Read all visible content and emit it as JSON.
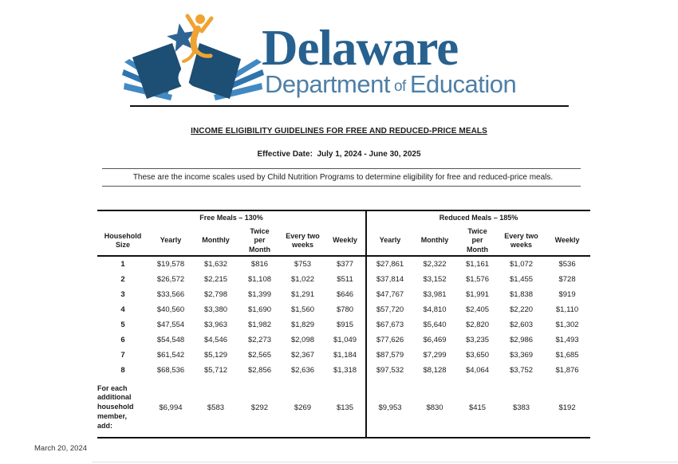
{
  "colors": {
    "delaware_blue": "#27618f",
    "dept_blue": "#4d7fa7",
    "book_navy": "#1d4e73",
    "page_blue": "#4289c2",
    "figure_orange": "#efa333"
  },
  "logo": {
    "title": "Delaware",
    "subtitle": [
      "Department",
      "of",
      "Education"
    ]
  },
  "header": {
    "title": "INCOME ELIGIBILITY GUIDELINES FOR FREE AND REDUCED-PRICE MEALS",
    "effective_date": "Effective Date:  July 1, 2024 - June 30, 2025",
    "description": "These are the income scales used by Child Nutrition Programs to determine eligibility for free and reduced-price meals."
  },
  "table": {
    "household_size_label": "Household\nSize",
    "group_headers": [
      "Free Meals – 130%",
      "Reduced Meals – 185%"
    ],
    "column_headers": [
      "Yearly",
      "Monthly",
      "Twice\nper\nMonth",
      "Every two\nweeks",
      "Weekly"
    ],
    "rows": [
      {
        "size": "1",
        "free": [
          "$19,578",
          "$1,632",
          "$816",
          "$753",
          "$377"
        ],
        "reduced": [
          "$27,861",
          "$2,322",
          "$1,161",
          "$1,072",
          "$536"
        ]
      },
      {
        "size": "2",
        "free": [
          "$26,572",
          "$2,215",
          "$1,108",
          "$1,022",
          "$511"
        ],
        "reduced": [
          "$37,814",
          "$3,152",
          "$1,576",
          "$1,455",
          "$728"
        ]
      },
      {
        "size": "3",
        "free": [
          "$33,566",
          "$2,798",
          "$1,399",
          "$1,291",
          "$646"
        ],
        "reduced": [
          "$47,767",
          "$3,981",
          "$1,991",
          "$1,838",
          "$919"
        ]
      },
      {
        "size": "4",
        "free": [
          "$40,560",
          "$3,380",
          "$1,690",
          "$1,560",
          "$780"
        ],
        "reduced": [
          "$57,720",
          "$4,810",
          "$2,405",
          "$2,220",
          "$1,110"
        ]
      },
      {
        "size": "5",
        "free": [
          "$47,554",
          "$3,963",
          "$1,982",
          "$1,829",
          "$915"
        ],
        "reduced": [
          "$67,673",
          "$5,640",
          "$2,820",
          "$2,603",
          "$1,302"
        ]
      },
      {
        "size": "6",
        "free": [
          "$54,548",
          "$4,546",
          "$2,273",
          "$2,098",
          "$1,049"
        ],
        "reduced": [
          "$77,626",
          "$6,469",
          "$3,235",
          "$2,986",
          "$1,493"
        ]
      },
      {
        "size": "7",
        "free": [
          "$61,542",
          "$5,129",
          "$2,565",
          "$2,367",
          "$1,184"
        ],
        "reduced": [
          "$87,579",
          "$7,299",
          "$3,650",
          "$3,369",
          "$1,685"
        ]
      },
      {
        "size": "8",
        "free": [
          "$68,536",
          "$5,712",
          "$2,856",
          "$2,636",
          "$1,318"
        ],
        "reduced": [
          "$97,532",
          "$8,128",
          "$4,064",
          "$3,752",
          "$1,876"
        ]
      }
    ],
    "additional_member": {
      "label": "For each\nadditional\nhousehold\nmember,\nadd:",
      "free": [
        "$6,994",
        "$583",
        "$292",
        "$269",
        "$135"
      ],
      "reduced": [
        "$9,953",
        "$830",
        "$415",
        "$383",
        "$192"
      ]
    }
  },
  "footer": {
    "date": "March 20, 2024"
  }
}
